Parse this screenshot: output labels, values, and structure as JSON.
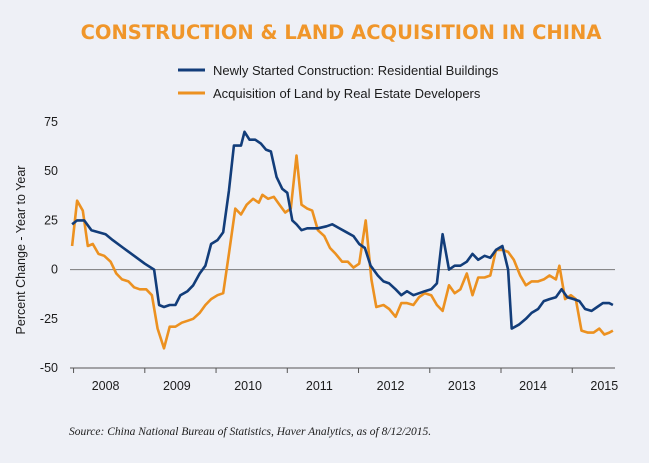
{
  "chart_data": {
    "type": "line",
    "title": "CONSTRUCTION & LAND ACQUISITION IN CHINA",
    "ylabel": "Percent Change - Year to Year",
    "ylim": [
      -50,
      75
    ],
    "yticks": [
      75,
      50,
      25,
      0,
      -25,
      -50
    ],
    "xlim": [
      2007.6,
      2015.25
    ],
    "xticks": [
      {
        "label": "2008",
        "x": 2008.1
      },
      {
        "label": "2009",
        "x": 2009.1
      },
      {
        "label": "2010",
        "x": 2010.1
      },
      {
        "label": "2011",
        "x": 2011.1
      },
      {
        "label": "2012",
        "x": 2012.1
      },
      {
        "label": "2013",
        "x": 2013.1
      },
      {
        "label": "2014",
        "x": 2014.1
      },
      {
        "label": "2015",
        "x": 2015.1
      }
    ],
    "zero_line": true,
    "legend_position": "top-center",
    "colors": {
      "title": "#f0962a",
      "series1": "#123d7a",
      "series2": "#ec9120",
      "axis": "#555555"
    },
    "series": [
      {
        "name": "Newly Started Construction: Residential Buildings",
        "points": [
          [
            2007.63,
            23
          ],
          [
            2007.7,
            25
          ],
          [
            2007.8,
            25
          ],
          [
            2007.9,
            20
          ],
          [
            2008.0,
            19
          ],
          [
            2008.1,
            18
          ],
          [
            2008.2,
            15
          ],
          [
            2008.35,
            11
          ],
          [
            2008.5,
            7
          ],
          [
            2008.65,
            3
          ],
          [
            2008.78,
            0
          ],
          [
            2008.85,
            -18
          ],
          [
            2008.92,
            -19
          ],
          [
            2009.0,
            -18
          ],
          [
            2009.08,
            -18
          ],
          [
            2009.15,
            -13
          ],
          [
            2009.25,
            -11
          ],
          [
            2009.33,
            -8
          ],
          [
            2009.42,
            -2
          ],
          [
            2009.5,
            2
          ],
          [
            2009.58,
            13
          ],
          [
            2009.67,
            15
          ],
          [
            2009.75,
            19
          ],
          [
            2009.83,
            40
          ],
          [
            2009.9,
            63
          ],
          [
            2010.0,
            63
          ],
          [
            2010.05,
            70
          ],
          [
            2010.12,
            66
          ],
          [
            2010.2,
            66
          ],
          [
            2010.28,
            64
          ],
          [
            2010.35,
            61
          ],
          [
            2010.42,
            60
          ],
          [
            2010.5,
            47
          ],
          [
            2010.58,
            41
          ],
          [
            2010.65,
            39
          ],
          [
            2010.72,
            25
          ],
          [
            2010.78,
            23
          ],
          [
            2010.85,
            20
          ],
          [
            2010.93,
            21
          ],
          [
            2011.0,
            21
          ],
          [
            2011.08,
            21
          ],
          [
            2011.2,
            22
          ],
          [
            2011.28,
            23
          ],
          [
            2011.38,
            21
          ],
          [
            2011.48,
            19
          ],
          [
            2011.58,
            17
          ],
          [
            2011.66,
            13
          ],
          [
            2011.74,
            11
          ],
          [
            2011.82,
            2
          ],
          [
            2011.92,
            -3
          ],
          [
            2012.0,
            -6
          ],
          [
            2012.08,
            -7
          ],
          [
            2012.17,
            -10
          ],
          [
            2012.25,
            -13
          ],
          [
            2012.33,
            -11
          ],
          [
            2012.42,
            -13
          ],
          [
            2012.5,
            -12
          ],
          [
            2012.58,
            -11
          ],
          [
            2012.67,
            -10
          ],
          [
            2012.75,
            -7
          ],
          [
            2012.83,
            18
          ],
          [
            2012.92,
            0
          ],
          [
            2013.0,
            2
          ],
          [
            2013.08,
            2
          ],
          [
            2013.17,
            4
          ],
          [
            2013.25,
            8
          ],
          [
            2013.33,
            5
          ],
          [
            2013.42,
            7
          ],
          [
            2013.5,
            6
          ],
          [
            2013.58,
            10
          ],
          [
            2013.67,
            12
          ],
          [
            2013.75,
            0
          ],
          [
            2013.8,
            -30
          ],
          [
            2013.9,
            -28
          ],
          [
            2014.0,
            -25
          ],
          [
            2014.08,
            -22
          ],
          [
            2014.17,
            -20
          ],
          [
            2014.25,
            -16
          ],
          [
            2014.33,
            -15
          ],
          [
            2014.42,
            -14
          ],
          [
            2014.5,
            -10
          ],
          [
            2014.58,
            -14
          ],
          [
            2014.67,
            -15
          ],
          [
            2014.75,
            -16
          ],
          [
            2014.83,
            -20
          ],
          [
            2014.92,
            -21
          ],
          [
            2015.0,
            -19
          ],
          [
            2015.08,
            -17
          ],
          [
            2015.17,
            -17
          ],
          [
            2015.22,
            -18
          ]
        ]
      },
      {
        "name": "Acquisition of Land by Real Estate Developers",
        "points": [
          [
            2007.63,
            12
          ],
          [
            2007.7,
            35
          ],
          [
            2007.78,
            30
          ],
          [
            2007.85,
            12
          ],
          [
            2007.92,
            13
          ],
          [
            2008.0,
            8
          ],
          [
            2008.08,
            7
          ],
          [
            2008.17,
            4
          ],
          [
            2008.25,
            -2
          ],
          [
            2008.33,
            -5
          ],
          [
            2008.42,
            -6
          ],
          [
            2008.5,
            -9
          ],
          [
            2008.58,
            -10
          ],
          [
            2008.67,
            -10
          ],
          [
            2008.75,
            -13
          ],
          [
            2008.83,
            -30
          ],
          [
            2008.92,
            -40
          ],
          [
            2009.0,
            -29
          ],
          [
            2009.08,
            -29
          ],
          [
            2009.17,
            -27
          ],
          [
            2009.25,
            -26
          ],
          [
            2009.33,
            -25
          ],
          [
            2009.42,
            -22
          ],
          [
            2009.5,
            -18
          ],
          [
            2009.58,
            -15
          ],
          [
            2009.67,
            -13
          ],
          [
            2009.75,
            -12
          ],
          [
            2009.83,
            8
          ],
          [
            2009.92,
            31
          ],
          [
            2010.0,
            28
          ],
          [
            2010.08,
            33
          ],
          [
            2010.17,
            36
          ],
          [
            2010.25,
            34
          ],
          [
            2010.3,
            38
          ],
          [
            2010.38,
            36
          ],
          [
            2010.46,
            37
          ],
          [
            2010.54,
            33
          ],
          [
            2010.62,
            29
          ],
          [
            2010.7,
            31
          ],
          [
            2010.78,
            58
          ],
          [
            2010.85,
            33
          ],
          [
            2010.93,
            31
          ],
          [
            2011.0,
            30
          ],
          [
            2011.08,
            20
          ],
          [
            2011.17,
            17
          ],
          [
            2011.25,
            11
          ],
          [
            2011.33,
            8
          ],
          [
            2011.42,
            4
          ],
          [
            2011.5,
            4
          ],
          [
            2011.58,
            1
          ],
          [
            2011.66,
            3
          ],
          [
            2011.75,
            25
          ],
          [
            2011.83,
            -5
          ],
          [
            2011.9,
            -19
          ],
          [
            2012.0,
            -18
          ],
          [
            2012.08,
            -20
          ],
          [
            2012.17,
            -24
          ],
          [
            2012.25,
            -17
          ],
          [
            2012.33,
            -17
          ],
          [
            2012.42,
            -18
          ],
          [
            2012.5,
            -14
          ],
          [
            2012.58,
            -12
          ],
          [
            2012.67,
            -13
          ],
          [
            2012.75,
            -18
          ],
          [
            2012.83,
            -21
          ],
          [
            2012.92,
            -8
          ],
          [
            2013.0,
            -12
          ],
          [
            2013.08,
            -10
          ],
          [
            2013.17,
            -2
          ],
          [
            2013.25,
            -13
          ],
          [
            2013.33,
            -4
          ],
          [
            2013.42,
            -4
          ],
          [
            2013.5,
            -3
          ],
          [
            2013.58,
            10
          ],
          [
            2013.67,
            10
          ],
          [
            2013.75,
            9
          ],
          [
            2013.83,
            5
          ],
          [
            2013.92,
            -3
          ],
          [
            2014.0,
            -8
          ],
          [
            2014.08,
            -6
          ],
          [
            2014.17,
            -6
          ],
          [
            2014.25,
            -5
          ],
          [
            2014.33,
            -3
          ],
          [
            2014.42,
            -5
          ],
          [
            2014.47,
            2
          ],
          [
            2014.55,
            -15
          ],
          [
            2014.63,
            -13
          ],
          [
            2014.7,
            -15
          ],
          [
            2014.78,
            -31
          ],
          [
            2014.87,
            -32
          ],
          [
            2014.95,
            -32
          ],
          [
            2015.03,
            -30
          ],
          [
            2015.1,
            -33
          ],
          [
            2015.17,
            -32
          ],
          [
            2015.22,
            -31
          ]
        ]
      }
    ]
  },
  "source": "Source: China National Bureau of Statistics, Haver Analytics, as of 8/12/2015."
}
